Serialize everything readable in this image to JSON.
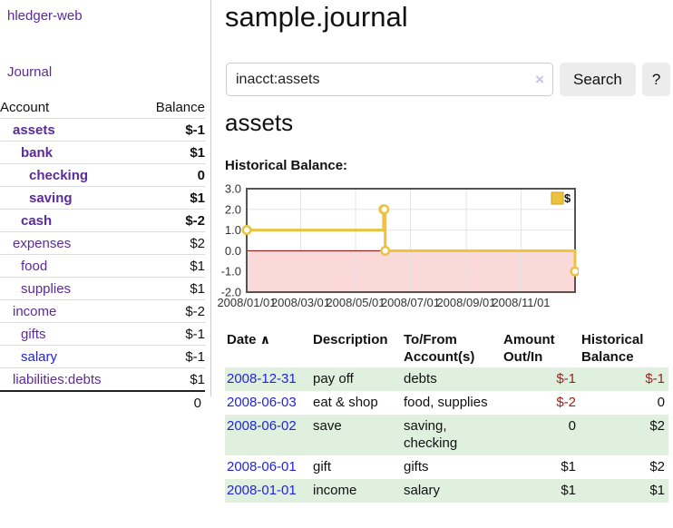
{
  "app": {
    "brand": "hledger-web",
    "colors": {
      "link_purple": "#5b2a9b",
      "link_blue": "#2323dd",
      "negative_red": "#9e2020",
      "muted_negative": "#b97e7e",
      "row_green": "#dff0df"
    }
  },
  "sidebar": {
    "journal_link": "Journal",
    "accounts": {
      "header_account": "Account",
      "header_balance": "Balance",
      "rows": [
        {
          "name": "assets",
          "indent": 1,
          "balance": "$-1",
          "bold": true,
          "neg": "strong"
        },
        {
          "name": "bank",
          "indent": 2,
          "balance": "$1",
          "bold": true,
          "neg": "none"
        },
        {
          "name": "checking",
          "indent": 3,
          "balance": "0",
          "bold": true,
          "neg": "none"
        },
        {
          "name": "saving",
          "indent": 3,
          "balance": "$1",
          "bold": true,
          "neg": "none"
        },
        {
          "name": "cash",
          "indent": 2,
          "balance": "$-2",
          "bold": true,
          "neg": "strong"
        },
        {
          "name": "expenses",
          "indent": 1,
          "balance": "$2",
          "bold": false,
          "neg": "none"
        },
        {
          "name": "food",
          "indent": 2,
          "balance": "$1",
          "bold": false,
          "neg": "none"
        },
        {
          "name": "supplies",
          "indent": 2,
          "balance": "$1",
          "bold": false,
          "neg": "none"
        },
        {
          "name": "income",
          "indent": 1,
          "balance": "$-2",
          "bold": false,
          "neg": "muted"
        },
        {
          "name": "gifts",
          "indent": 2,
          "balance": "$-1",
          "bold": false,
          "neg": "muted"
        },
        {
          "name": "salary",
          "indent": 2,
          "balance": "$-1",
          "bold": false,
          "neg": "muted",
          "blue": true
        },
        {
          "name": "liabilities:debts",
          "indent": 1,
          "balance": "$1",
          "bold": false,
          "neg": "none"
        }
      ],
      "total": "0"
    }
  },
  "main": {
    "title": "sample.journal",
    "search": {
      "value": "inacct:assets",
      "clear_icon": "×",
      "search_button": "Search",
      "help_button": "?"
    },
    "account_heading": "assets",
    "chart_heading": "Historical Balance:"
  },
  "chart_data": {
    "type": "line",
    "title": "Historical Balance",
    "step": true,
    "legend": [
      {
        "label": "$",
        "color": "#edc240"
      }
    ],
    "legend_position": "top-right",
    "grid": true,
    "x_start": "2008-01-01",
    "xlim_days": [
      0,
      365
    ],
    "ylim": [
      -2,
      3
    ],
    "x_ticks": [
      "2008/01/01",
      "2008/03/01",
      "2008/05/01",
      "2008/07/01",
      "2008/09/01",
      "2008/11/01"
    ],
    "y_ticks": [
      "3.0",
      "2.0",
      "1.0",
      "0.0",
      "-1.0",
      "-2.0"
    ],
    "series": [
      {
        "name": "$",
        "color": "#edc240",
        "points": [
          {
            "date": "2008-01-01",
            "value": 1
          },
          {
            "date": "2008-06-01",
            "value": 2
          },
          {
            "date": "2008-06-02",
            "value": 2
          },
          {
            "date": "2008-06-03",
            "value": 0
          },
          {
            "date": "2008-12-31",
            "value": -1
          }
        ]
      }
    ],
    "styles": {
      "grid_line": "#e4e4e4",
      "plot_border": "#545454",
      "zero_line": "#8b0000",
      "negative_region_fill": "#fbd9d9",
      "marker_fill": "#ffffff",
      "legend_square_border": "#c9a227",
      "tick_label_color": "#333333"
    }
  },
  "register": {
    "headers": {
      "date": "Date",
      "sort_icon": "∧",
      "description": "Description",
      "accounts_line1": "To/From",
      "accounts_line2": "Account(s)",
      "amount_line1": "Amount",
      "amount_line2": "Out/In",
      "balance_line1": "Historical",
      "balance_line2": "Balance"
    },
    "rows": [
      {
        "date": "2008-12-31",
        "description": "pay off",
        "accounts": "debts",
        "amount": "$-1",
        "amount_neg": true,
        "balance": "$-1",
        "balance_neg": true,
        "shaded": true
      },
      {
        "date": "2008-06-03",
        "description": "eat & shop",
        "accounts": "food, supplies",
        "amount": "$-2",
        "amount_neg": true,
        "balance": "0",
        "balance_neg": false,
        "shaded": false
      },
      {
        "date": "2008-06-02",
        "description": "save",
        "accounts": "saving, checking",
        "amount": "0",
        "amount_neg": false,
        "balance": "$2",
        "balance_neg": false,
        "shaded": true
      },
      {
        "date": "2008-06-01",
        "description": "gift",
        "accounts": "gifts",
        "amount": "$1",
        "amount_neg": false,
        "balance": "$2",
        "balance_neg": false,
        "shaded": false
      },
      {
        "date": "2008-01-01",
        "description": "income",
        "accounts": "salary",
        "amount": "$1",
        "amount_neg": false,
        "balance": "$1",
        "balance_neg": false,
        "shaded": true
      }
    ]
  }
}
